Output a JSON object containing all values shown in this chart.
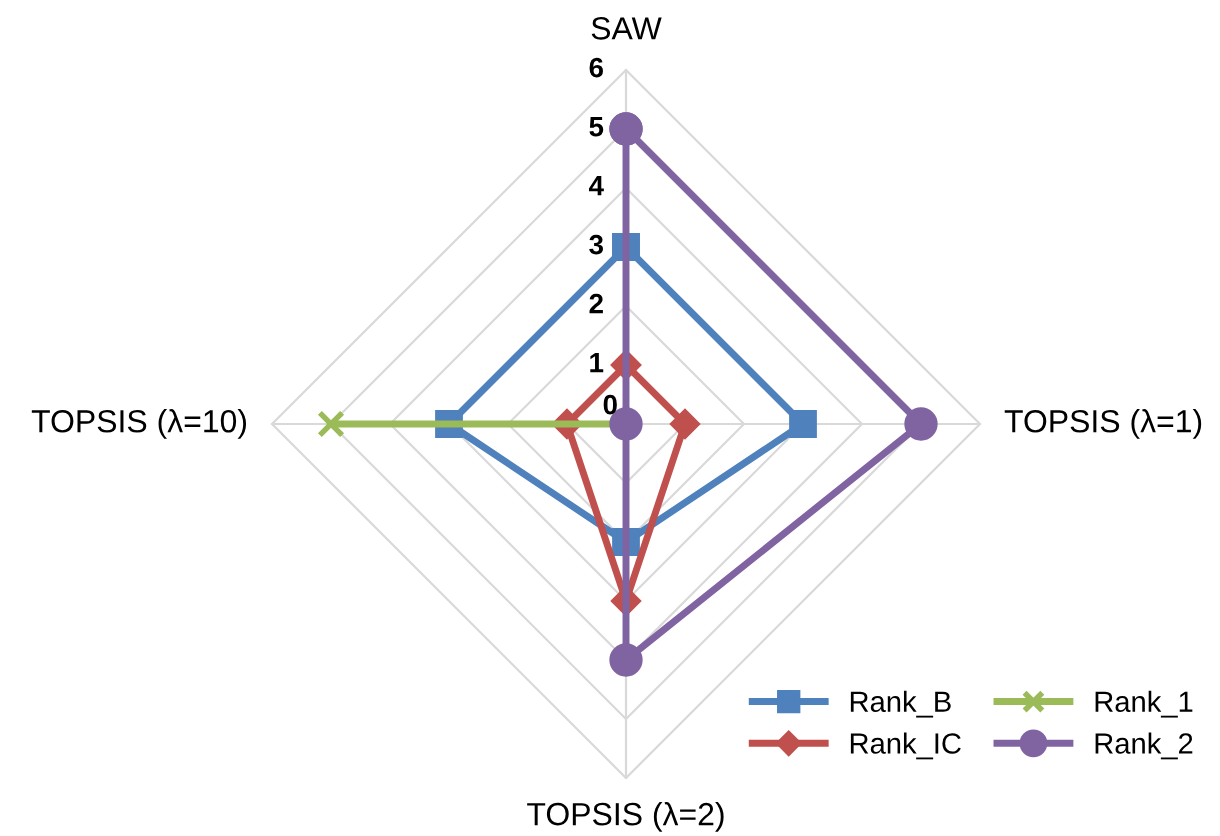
{
  "chart_data": {
    "type": "radar",
    "categories": [
      "SAW",
      "TOPSIS (λ=1)",
      "TOPSIS (λ=2)",
      "TOPSIS (λ=10)"
    ],
    "ylim": [
      0,
      6
    ],
    "yticks": [
      0,
      1,
      2,
      3,
      4,
      5,
      6
    ],
    "grid": true,
    "legend": "bottom right",
    "series": [
      {
        "name": "Rank_B",
        "color": "#4f81bd",
        "marker": "square",
        "values": [
          3,
          3,
          2,
          3
        ]
      },
      {
        "name": "Rank_IC",
        "color": "#c0504d",
        "marker": "diamond",
        "values": [
          1,
          1,
          3,
          1
        ]
      },
      {
        "name": "Rank_1",
        "color": "#9bbb59",
        "marker": "cross",
        "values": [
          0,
          0,
          0,
          5
        ]
      },
      {
        "name": "Rank_2",
        "color": "#8064a2",
        "marker": "circle",
        "values": [
          5,
          5,
          4,
          0
        ]
      }
    ]
  }
}
